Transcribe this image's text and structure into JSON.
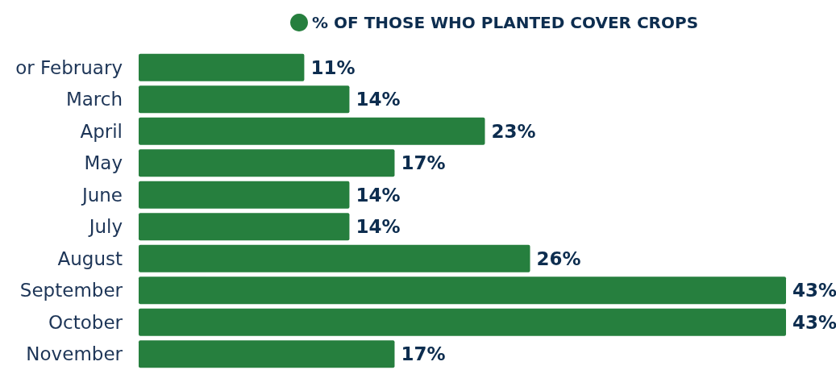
{
  "chart_data": {
    "type": "bar",
    "orientation": "horizontal",
    "categories": [
      "or February",
      "March",
      "April",
      "May",
      "June",
      "July",
      "August",
      "September",
      "October",
      "November"
    ],
    "series": [
      {
        "name": "% OF THOSE WHO PLANTED COVER CROPS",
        "color": "#267f3e",
        "values": [
          11,
          14,
          23,
          17,
          14,
          14,
          26,
          43,
          43,
          17
        ],
        "value_labels": [
          "11%",
          "14%",
          "23%",
          "17%",
          "14%",
          "14%",
          "26%",
          "43%",
          "43%",
          "17%"
        ]
      }
    ],
    "legend": "top"
  }
}
